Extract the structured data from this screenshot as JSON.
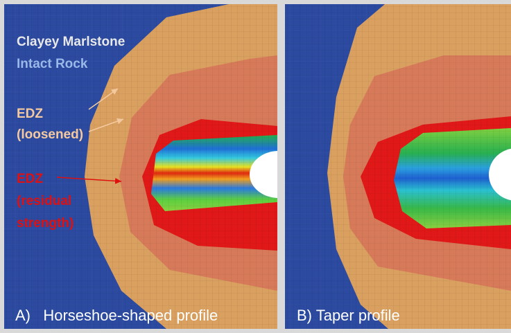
{
  "panels": [
    {
      "legend": {
        "title": "Clayey Marlstone",
        "subtitle": "Intact Rock"
      },
      "labels": [
        {
          "lines": [
            "EDZ",
            "(loosened)"
          ]
        },
        {
          "lines": [
            "EDZ",
            "(residual",
            "strength)"
          ]
        }
      ],
      "caption": "A)   Horseshoe-shaped profile"
    },
    {
      "caption": "B) Taper profile"
    }
  ]
}
